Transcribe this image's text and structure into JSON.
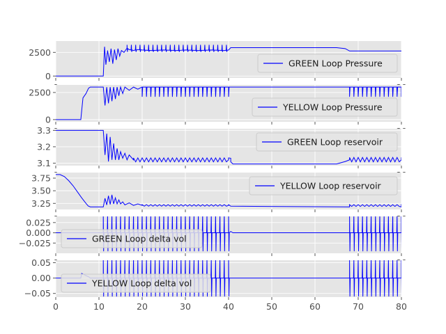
{
  "chart_data": [
    {
      "type": "line",
      "legend": "GREEN Loop Pressure",
      "legend_position": "lower-right",
      "color": "#0000ff",
      "xlim": [
        0,
        80
      ],
      "ylim": [
        -200,
        3700
      ],
      "yticks": [
        0,
        2500
      ],
      "ytick_labels": [
        "0",
        "2500"
      ],
      "grid": true,
      "x": [
        0,
        11,
        11.3,
        11.6,
        12,
        12.4,
        12.8,
        13.2,
        13.6,
        14,
        14.4,
        14.8,
        15.2,
        15.8,
        16.5,
        17,
        18,
        19,
        20,
        22,
        25,
        28,
        30,
        33,
        36,
        39,
        40,
        40.5,
        55,
        65,
        67,
        68,
        70,
        72,
        74,
        76,
        78,
        80
      ],
      "y": [
        0,
        0,
        3100,
        1200,
        2700,
        1500,
        2900,
        1300,
        2800,
        1700,
        2900,
        2100,
        2700,
        2500,
        2900,
        2800,
        2700,
        2800,
        2750,
        2700,
        2750,
        2700,
        2750,
        2700,
        2750,
        2700,
        2750,
        3000,
        3000,
        3000,
        2900,
        2650,
        2650,
        2650,
        2650,
        2650,
        2650,
        2650
      ],
      "spikes": {
        "x_start": 16.5,
        "x_end": 40,
        "period": 1,
        "peak": 3300,
        "trough": 2550
      }
    },
    {
      "type": "line",
      "legend": "YELLOW Loop Pressure",
      "legend_position": "lower-right",
      "color": "#0000ff",
      "xlim": [
        0,
        80
      ],
      "ylim": [
        -200,
        3200
      ],
      "yticks": [
        0,
        2500
      ],
      "ytick_labels": [
        "0",
        "2500"
      ],
      "grid": true,
      "x": [
        0,
        5.8,
        6.3,
        7,
        7.6,
        8,
        11,
        11.4,
        11.8,
        12.2,
        12.6,
        13,
        13.4,
        13.8,
        14.2,
        14.6,
        15,
        15.5,
        16,
        17,
        18,
        19,
        20,
        40,
        68,
        80
      ],
      "y": [
        0,
        0,
        2000,
        2400,
        2900,
        3000,
        3000,
        1300,
        3000,
        1500,
        3000,
        1700,
        3000,
        1900,
        3000,
        2200,
        3000,
        2400,
        3000,
        2700,
        3000,
        2800,
        3000,
        3000,
        3000,
        3000
      ],
      "dips": [
        {
          "x_start": 20,
          "x_end": 40,
          "period": 1,
          "trough": 2100
        },
        {
          "x_start": 68,
          "x_end": 80,
          "period": 1,
          "trough": 2100
        }
      ]
    },
    {
      "type": "line",
      "legend": "GREEN Loop reservoir",
      "legend_position": "upper-right",
      "color": "#0000ff",
      "xlim": [
        0,
        80
      ],
      "ylim": [
        3.085,
        3.31
      ],
      "yticks": [
        3.1,
        3.2,
        3.3
      ],
      "ytick_labels": [
        "3.1",
        "3.2",
        "3.3"
      ],
      "grid": true,
      "x": [
        0,
        11,
        11.4,
        11.8,
        12.2,
        12.6,
        13,
        13.4,
        13.8,
        14.2,
        14.6,
        15,
        15.5,
        16,
        16.5,
        17,
        18,
        40,
        40.5,
        41,
        65,
        67,
        68,
        80
      ],
      "y": [
        3.3,
        3.3,
        3.15,
        3.28,
        3.11,
        3.26,
        3.12,
        3.22,
        3.12,
        3.19,
        3.12,
        3.17,
        3.13,
        3.16,
        3.12,
        3.15,
        3.12,
        3.12,
        3.13,
        3.095,
        3.095,
        3.11,
        3.12,
        3.12
      ],
      "zigzag": [
        {
          "x_start": 18,
          "x_end": 40,
          "period": 1,
          "high": 3.132,
          "low": 3.108
        },
        {
          "x_start": 68,
          "x_end": 80,
          "period": 1,
          "high": 3.135,
          "low": 3.108
        }
      ]
    },
    {
      "type": "line",
      "legend": "YELLOW Loop reservoir",
      "legend_position": "upper-right",
      "color": "#0000ff",
      "xlim": [
        0,
        80
      ],
      "ylim": [
        3.13,
        3.86
      ],
      "yticks": [
        3.25,
        3.5,
        3.75
      ],
      "ytick_labels": [
        "3.25",
        "3.50",
        "3.75"
      ],
      "grid": true,
      "x": [
        0,
        1,
        2,
        3,
        4,
        5,
        6,
        7,
        7.5,
        8,
        11,
        11.4,
        11.8,
        12.2,
        12.6,
        13,
        13.4,
        13.8,
        14.2,
        14.6,
        15,
        15.5,
        16,
        17,
        18,
        19,
        20,
        40,
        68,
        80
      ],
      "y": [
        3.82,
        3.82,
        3.78,
        3.7,
        3.6,
        3.48,
        3.36,
        3.25,
        3.2,
        3.18,
        3.18,
        3.35,
        3.22,
        3.4,
        3.23,
        3.42,
        3.24,
        3.36,
        3.24,
        3.32,
        3.24,
        3.28,
        3.22,
        3.26,
        3.21,
        3.24,
        3.21,
        3.21,
        3.18,
        3.18
      ],
      "zigzag": [
        {
          "x_start": 20,
          "x_end": 40,
          "period": 1,
          "high": 3.225,
          "low": 3.195
        },
        {
          "x_start": 68,
          "x_end": 80,
          "period": 1,
          "high": 3.225,
          "low": 3.19
        }
      ]
    },
    {
      "type": "line",
      "legend": "GREEN Loop delta vol",
      "legend_position": "lower-left",
      "color": "#0000ff",
      "xlim": [
        0,
        80
      ],
      "ylim": [
        -0.05,
        0.04
      ],
      "yticks": [
        -0.025,
        0.0,
        0.025
      ],
      "ytick_labels": [
        "−0.025",
        "0.000",
        "0.025"
      ],
      "grid": true,
      "x": [
        0,
        11,
        40,
        40.5,
        41,
        65,
        68,
        80
      ],
      "y": [
        0,
        0,
        0,
        0.003,
        0,
        0,
        0,
        0
      ],
      "spikes": [
        {
          "x_start": 11,
          "x_end": 40,
          "period": 1,
          "peak": 0.045,
          "trough": -0.045
        },
        {
          "x_start": 68,
          "x_end": 80,
          "period": 1,
          "peak": 0.045,
          "trough": -0.045
        }
      ]
    },
    {
      "type": "line",
      "legend": "YELLOW Loop delta vol",
      "legend_position": "lower-left",
      "color": "#0000ff",
      "xlim": [
        0,
        80
      ],
      "xticks": [
        0,
        10,
        20,
        30,
        40,
        50,
        60,
        70,
        80
      ],
      "xtick_labels": [
        "0",
        "10",
        "20",
        "30",
        "40",
        "50",
        "60",
        "70",
        "80"
      ],
      "ylim": [
        -0.062,
        0.058
      ],
      "yticks": [
        -0.05,
        0.0,
        0.05
      ],
      "ytick_labels": [
        "−0.05",
        "0.00",
        "0.05"
      ],
      "grid": true,
      "x": [
        0,
        5.8,
        6,
        6.5,
        7,
        7.6,
        8,
        11,
        40,
        68,
        80
      ],
      "y": [
        0,
        0,
        0.015,
        0.012,
        0.008,
        0.004,
        0,
        0,
        0,
        0,
        0
      ],
      "spikes": [
        {
          "x_start": 11,
          "x_end": 40,
          "period": 1,
          "peak": 0.06,
          "trough": -0.06
        },
        {
          "x_start": 68,
          "x_end": 80,
          "period": 1,
          "peak": 0.06,
          "trough": -0.06
        }
      ]
    }
  ]
}
